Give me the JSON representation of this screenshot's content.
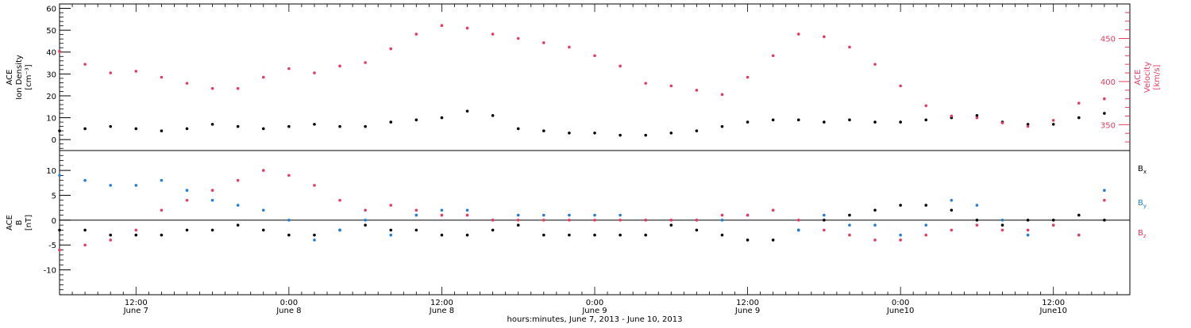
{
  "chart_data": [
    {
      "type": "scatter",
      "panel": "top",
      "ylabel_lines": [
        "ACE",
        "Ion Density",
        "[cm⁻³]"
      ],
      "ylim": [
        -5,
        62
      ],
      "yticks": [
        0,
        10,
        20,
        30,
        40,
        50,
        60
      ],
      "y2label_lines": [
        "ACE",
        "Velocity",
        "[km/s]"
      ],
      "y2lim": [
        320,
        490
      ],
      "y2ticks": [
        350,
        400,
        450
      ],
      "colors": {
        "density": "#000000",
        "velocity": "#e8395f"
      },
      "series": [
        {
          "axis": "left",
          "color": "#000000",
          "x": [
            0,
            2,
            4,
            6,
            8,
            10,
            12,
            14,
            16,
            18,
            20,
            22,
            24,
            26,
            28,
            30,
            32,
            34,
            36,
            38,
            40,
            42,
            44,
            46,
            48,
            50,
            52,
            54,
            56,
            58,
            60,
            62,
            64,
            66,
            68,
            70,
            72,
            74,
            76,
            78,
            80,
            82
          ],
          "values": [
            4,
            5,
            6,
            5,
            4,
            5,
            7,
            6,
            5,
            6,
            7,
            6,
            6,
            8,
            9,
            10,
            13,
            11,
            5,
            4,
            3,
            3,
            2,
            2,
            3,
            4,
            6,
            8,
            9,
            9,
            8,
            9,
            8,
            8,
            9,
            10,
            11,
            8,
            7,
            7,
            10,
            12
          ]
        },
        {
          "axis": "right",
          "color": "#e8395f",
          "x": [
            0,
            2,
            4,
            6,
            8,
            10,
            12,
            14,
            16,
            18,
            20,
            22,
            24,
            26,
            28,
            30,
            32,
            34,
            36,
            38,
            40,
            42,
            44,
            46,
            48,
            50,
            52,
            54,
            56,
            58,
            60,
            62,
            64,
            66,
            68,
            70,
            72,
            74,
            76,
            78,
            80,
            82
          ],
          "values": [
            435,
            420,
            410,
            412,
            405,
            398,
            392,
            392,
            405,
            415,
            410,
            418,
            422,
            438,
            455,
            465,
            462,
            455,
            450,
            445,
            440,
            430,
            418,
            398,
            395,
            390,
            385,
            405,
            430,
            455,
            452,
            440,
            420,
            395,
            372,
            360,
            358,
            352,
            348,
            355,
            375,
            380
          ]
        }
      ]
    },
    {
      "type": "scatter",
      "panel": "bottom",
      "ylabel_lines": [
        "ACE",
        "B",
        "[nT]"
      ],
      "ylim": [
        -15,
        14
      ],
      "yticks": [
        -10,
        -5,
        0,
        5,
        10
      ],
      "zero_line": true,
      "legend_placement": "right",
      "legend": [
        {
          "main": "B",
          "sub": "x",
          "color": "#000000"
        },
        {
          "main": "B",
          "sub": "y",
          "color": "#1f7ed8"
        },
        {
          "main": "B",
          "sub": "z",
          "color": "#e8395f"
        }
      ],
      "series": [
        {
          "color": "#000000",
          "x": [
            0,
            2,
            4,
            6,
            8,
            10,
            12,
            14,
            16,
            18,
            20,
            22,
            24,
            26,
            28,
            30,
            32,
            34,
            36,
            38,
            40,
            42,
            44,
            46,
            48,
            50,
            52,
            54,
            56,
            58,
            60,
            62,
            64,
            66,
            68,
            70,
            72,
            74,
            76,
            78,
            80,
            82
          ],
          "values": [
            -2,
            -2,
            -3,
            -3,
            -3,
            -2,
            -2,
            -1,
            -2,
            -3,
            -3,
            -2,
            -1,
            -2,
            -2,
            -3,
            -3,
            -2,
            -1,
            -3,
            -3,
            -3,
            -3,
            -3,
            -1,
            -2,
            -3,
            -4,
            -4,
            -2,
            0,
            1,
            2,
            3,
            3,
            2,
            0,
            -1,
            0,
            0,
            1,
            0
          ]
        },
        {
          "color": "#1f7ed8",
          "x": [
            0,
            2,
            4,
            6,
            8,
            10,
            12,
            14,
            16,
            18,
            20,
            22,
            24,
            26,
            28,
            30,
            32,
            34,
            36,
            38,
            40,
            42,
            44,
            46,
            48,
            50,
            52,
            54,
            56,
            58,
            60,
            62,
            64,
            66,
            68,
            70,
            72,
            74,
            76,
            78,
            80,
            82
          ],
          "values": [
            9,
            8,
            7,
            7,
            8,
            6,
            4,
            3,
            2,
            0,
            -4,
            -2,
            0,
            -3,
            1,
            2,
            2,
            0,
            1,
            1,
            1,
            1,
            1,
            0,
            0,
            0,
            0,
            1,
            2,
            -2,
            1,
            -1,
            -1,
            -3,
            -1,
            4,
            3,
            0,
            -3,
            -1,
            -3,
            6
          ]
        },
        {
          "color": "#e8395f",
          "x": [
            0,
            2,
            4,
            6,
            8,
            10,
            12,
            14,
            16,
            18,
            20,
            22,
            24,
            26,
            28,
            30,
            32,
            34,
            36,
            38,
            40,
            42,
            44,
            46,
            48,
            50,
            52,
            54,
            56,
            58,
            60,
            62,
            64,
            66,
            68,
            70,
            72,
            74,
            76,
            78,
            80,
            82
          ],
          "values": [
            -6,
            -5,
            -4,
            -2,
            2,
            4,
            6,
            8,
            10,
            9,
            7,
            4,
            2,
            3,
            2,
            1,
            1,
            0,
            0,
            0,
            0,
            0,
            0,
            0,
            0,
            0,
            1,
            1,
            2,
            0,
            -2,
            -3,
            -4,
            -4,
            -3,
            -2,
            -1,
            -2,
            -2,
            -1,
            -3,
            4
          ]
        }
      ]
    }
  ],
  "x_axis": {
    "xlim": [
      0,
      84
    ],
    "xlabel": "hours:minutes, June  7, 2013 - June 10, 2013",
    "major_ticks": [
      {
        "x": 6,
        "time": "12:00",
        "date": "June 7"
      },
      {
        "x": 18,
        "time": "0:00",
        "date": "June 8"
      },
      {
        "x": 30,
        "time": "12:00",
        "date": "June 8"
      },
      {
        "x": 42,
        "time": "0:00",
        "date": "June 9"
      },
      {
        "x": 54,
        "time": "12:00",
        "date": "June 9"
      },
      {
        "x": 66,
        "time": "0:00",
        "date": "June10"
      },
      {
        "x": 78,
        "time": "12:00",
        "date": "June10"
      }
    ]
  }
}
